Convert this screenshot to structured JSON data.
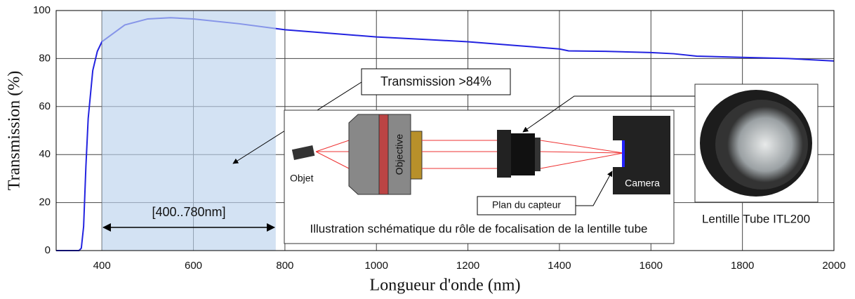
{
  "chart_data": {
    "type": "line",
    "x_label": "Longueur d'onde (nm)",
    "y_label": "Transmission (%)",
    "x": [
      300,
      350,
      355,
      360,
      365,
      370,
      380,
      390,
      400,
      450,
      500,
      550,
      600,
      700,
      800,
      900,
      1000,
      1100,
      1200,
      1300,
      1400,
      1420,
      1500,
      1600,
      1650,
      1700,
      1800,
      1900,
      2000
    ],
    "values": [
      0,
      0,
      1,
      10,
      35,
      55,
      75,
      83,
      87,
      94,
      96.5,
      97,
      96.5,
      94.5,
      92,
      90.5,
      89,
      88,
      87,
      85.5,
      84,
      83.2,
      83,
      82.5,
      82,
      81,
      80.5,
      80,
      79
    ],
    "color": "#2323e0",
    "xlim": [
      300,
      2000
    ],
    "xticks": [
      400,
      600,
      800,
      1000,
      1200,
      1400,
      1600,
      1800,
      2000
    ],
    "ylim": [
      0,
      100
    ],
    "yticks": [
      0,
      20,
      40,
      60,
      80,
      100
    ],
    "grid": true,
    "highlight": {
      "from": 400,
      "to": 780,
      "label": "[400..780nm]",
      "color": "#bcd3ec"
    },
    "annotation": "Transmission >84%",
    "illustration": {
      "caption": "Illustration schématique du rôle de focalisation de la lentille tube",
      "object": "Objet",
      "objective": "Objective",
      "camera": "Camera",
      "sensor": "Plan du capteur"
    },
    "photo_caption": "Lentille Tube ITL200"
  }
}
